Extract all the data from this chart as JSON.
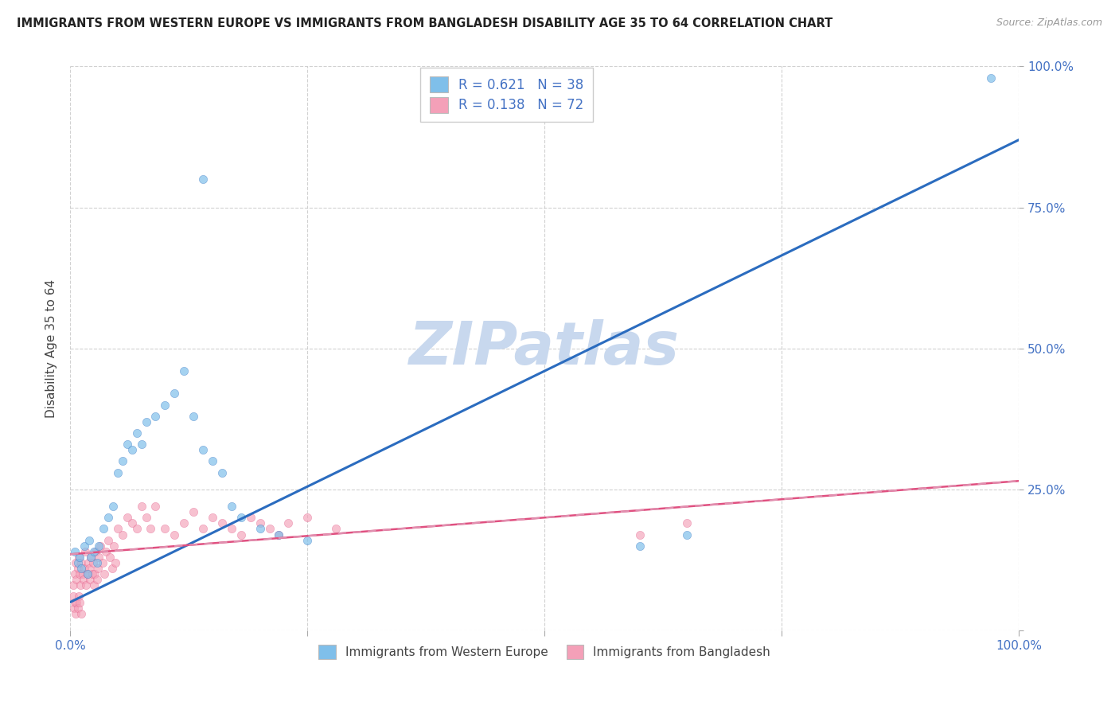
{
  "title": "IMMIGRANTS FROM WESTERN EUROPE VS IMMIGRANTS FROM BANGLADESH DISABILITY AGE 35 TO 64 CORRELATION CHART",
  "source": "Source: ZipAtlas.com",
  "ylabel": "Disability Age 35 to 64",
  "legend_label_blue": "Immigrants from Western Europe",
  "legend_label_pink": "Immigrants from Bangladesh",
  "R_blue": 0.621,
  "N_blue": 38,
  "R_pink": 0.138,
  "N_pink": 72,
  "blue_color": "#7fbfea",
  "pink_color": "#f4a0b8",
  "blue_line_color": "#2b6cbf",
  "pink_line_color": "#e05080",
  "pink_dash_color": "#e090b0",
  "background_color": "#ffffff",
  "grid_color": "#cccccc",
  "tick_color": "#4472c4",
  "watermark": "ZIPatlas",
  "watermark_color": "#c8d8ee",
  "title_color": "#222222",
  "source_color": "#999999",
  "ylabel_color": "#444444",
  "legend_text_color": "#4472c4",
  "bottom_legend_color": "#444444",
  "blue_scatter_x": [
    0.005,
    0.008,
    0.01,
    0.012,
    0.015,
    0.018,
    0.02,
    0.022,
    0.025,
    0.028,
    0.03,
    0.035,
    0.04,
    0.045,
    0.05,
    0.055,
    0.06,
    0.065,
    0.07,
    0.075,
    0.08,
    0.09,
    0.1,
    0.11,
    0.12,
    0.13,
    0.14,
    0.15,
    0.16,
    0.17,
    0.18,
    0.2,
    0.22,
    0.25,
    0.6,
    0.65,
    0.97,
    0.14
  ],
  "blue_scatter_y": [
    0.14,
    0.12,
    0.13,
    0.11,
    0.15,
    0.1,
    0.16,
    0.13,
    0.14,
    0.12,
    0.15,
    0.18,
    0.2,
    0.22,
    0.28,
    0.3,
    0.33,
    0.32,
    0.35,
    0.33,
    0.37,
    0.38,
    0.4,
    0.42,
    0.46,
    0.38,
    0.32,
    0.3,
    0.28,
    0.22,
    0.2,
    0.18,
    0.17,
    0.16,
    0.15,
    0.17,
    0.98,
    0.8
  ],
  "pink_scatter_x": [
    0.003,
    0.005,
    0.006,
    0.007,
    0.008,
    0.009,
    0.01,
    0.011,
    0.012,
    0.013,
    0.014,
    0.015,
    0.016,
    0.017,
    0.018,
    0.019,
    0.02,
    0.021,
    0.022,
    0.023,
    0.024,
    0.025,
    0.026,
    0.027,
    0.028,
    0.029,
    0.03,
    0.032,
    0.034,
    0.036,
    0.038,
    0.04,
    0.042,
    0.044,
    0.046,
    0.048,
    0.05,
    0.055,
    0.06,
    0.065,
    0.07,
    0.075,
    0.08,
    0.085,
    0.09,
    0.1,
    0.11,
    0.12,
    0.13,
    0.14,
    0.15,
    0.16,
    0.17,
    0.18,
    0.19,
    0.2,
    0.21,
    0.22,
    0.23,
    0.25,
    0.28,
    0.6,
    0.65,
    0.003,
    0.004,
    0.005,
    0.006,
    0.007,
    0.008,
    0.009,
    0.01,
    0.012
  ],
  "pink_scatter_y": [
    0.08,
    0.1,
    0.12,
    0.09,
    0.11,
    0.13,
    0.1,
    0.08,
    0.12,
    0.1,
    0.09,
    0.11,
    0.14,
    0.08,
    0.1,
    0.12,
    0.11,
    0.09,
    0.13,
    0.1,
    0.12,
    0.08,
    0.1,
    0.14,
    0.09,
    0.11,
    0.13,
    0.15,
    0.12,
    0.1,
    0.14,
    0.16,
    0.13,
    0.11,
    0.15,
    0.12,
    0.18,
    0.17,
    0.2,
    0.19,
    0.18,
    0.22,
    0.2,
    0.18,
    0.22,
    0.18,
    0.17,
    0.19,
    0.21,
    0.18,
    0.2,
    0.19,
    0.18,
    0.17,
    0.2,
    0.19,
    0.18,
    0.17,
    0.19,
    0.2,
    0.18,
    0.17,
    0.19,
    0.06,
    0.04,
    0.05,
    0.03,
    0.05,
    0.04,
    0.06,
    0.05,
    0.03
  ],
  "blue_line_x0": 0.0,
  "blue_line_y0": 0.05,
  "blue_line_x1": 1.0,
  "blue_line_y1": 0.87,
  "pink_line_x0": 0.0,
  "pink_line_y0": 0.135,
  "pink_line_x1": 1.0,
  "pink_line_y1": 0.265,
  "xlim": [
    0.0,
    1.0
  ],
  "ylim": [
    0.0,
    1.0
  ],
  "xticks": [
    0.0,
    0.25,
    0.5,
    0.75,
    1.0
  ],
  "xticklabels": [
    "0.0%",
    "",
    "",
    "",
    "100.0%"
  ],
  "yticks": [
    0.0,
    0.25,
    0.5,
    0.75,
    1.0
  ],
  "yticklabels_right": [
    "",
    "25.0%",
    "50.0%",
    "75.0%",
    "100.0%"
  ]
}
